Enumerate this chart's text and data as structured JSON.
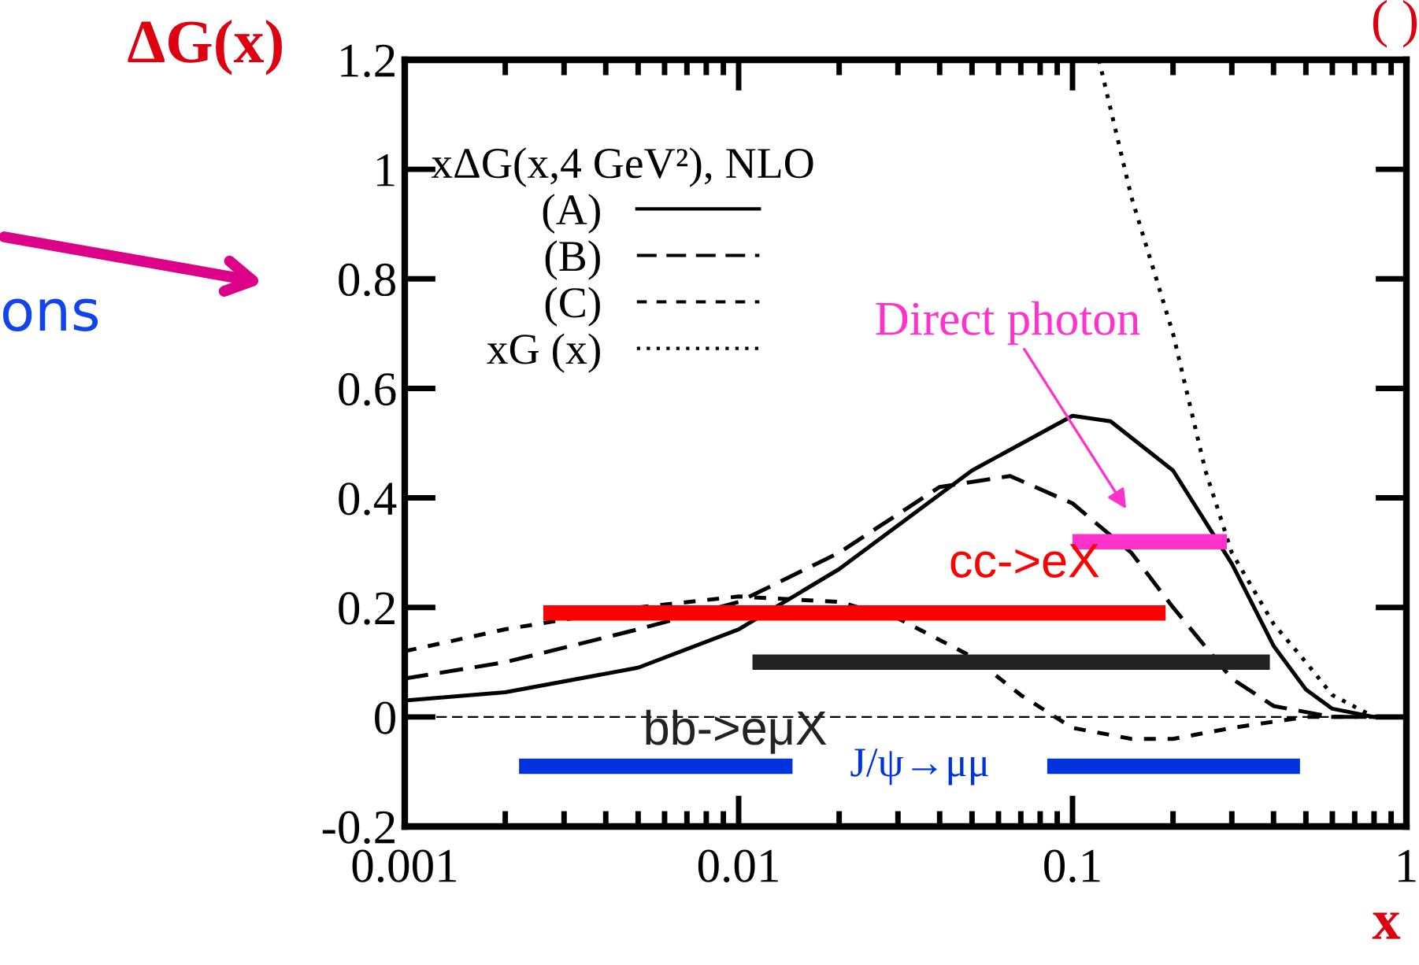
{
  "chart_data": {
    "type": "line",
    "xlabel": "x",
    "ylabel": "ΔG(x)",
    "legend_title": "xΔG(x,4 GeV²), NLO",
    "log": "x",
    "xlim": [
      0.001,
      1
    ],
    "xticks": [
      0.001,
      0.01,
      0.1,
      1
    ],
    "ylim": [
      -0.2,
      1.2
    ],
    "yticks": [
      -0.2,
      0,
      0.2,
      0.4,
      0.6,
      0.8,
      1,
      1.2
    ],
    "grid": false,
    "legend": "top left",
    "series": [
      {
        "name": "(A)",
        "color": "#000000",
        "line_style": "solid",
        "x": [
          0.001,
          0.002,
          0.005,
          0.01,
          0.02,
          0.05,
          0.1,
          0.13,
          0.2,
          0.3,
          0.4,
          0.5,
          0.6,
          0.8,
          1
        ],
        "values": [
          0.03,
          0.045,
          0.09,
          0.16,
          0.27,
          0.45,
          0.55,
          0.54,
          0.45,
          0.28,
          0.13,
          0.05,
          0.015,
          0,
          0
        ]
      },
      {
        "name": "(B)",
        "color": "#000000",
        "line_style": "dashed",
        "x": [
          0.001,
          0.002,
          0.005,
          0.01,
          0.02,
          0.04,
          0.065,
          0.1,
          0.15,
          0.2,
          0.3,
          0.4,
          0.6,
          1
        ],
        "values": [
          0.07,
          0.1,
          0.16,
          0.21,
          0.3,
          0.42,
          0.44,
          0.39,
          0.3,
          0.2,
          0.07,
          0.02,
          0,
          0
        ]
      },
      {
        "name": "(C)",
        "color": "#000000",
        "line_style": "shortdash",
        "x": [
          0.001,
          0.002,
          0.005,
          0.01,
          0.02,
          0.03,
          0.05,
          0.07,
          0.1,
          0.15,
          0.2,
          0.3,
          0.5,
          1
        ],
        "values": [
          0.12,
          0.16,
          0.2,
          0.22,
          0.21,
          0.18,
          0.11,
          0.04,
          -0.02,
          -0.04,
          -0.04,
          -0.02,
          0,
          0
        ]
      },
      {
        "name": "xG (x)",
        "color": "#000000",
        "line_style": "dotted",
        "x": [
          0.12,
          0.15,
          0.2,
          0.25,
          0.3,
          0.4,
          0.5,
          0.6,
          0.8,
          1
        ],
        "values": [
          1.2,
          0.95,
          0.7,
          0.45,
          0.3,
          0.17,
          0.1,
          0.04,
          0,
          0
        ]
      },
      {
        "name": "Direct photon",
        "color": "#ff33cc",
        "x": [
          0.1,
          0.29
        ],
        "values": [
          0.32,
          0.32
        ]
      },
      {
        "name": "cc->eX",
        "color": "#ff0000",
        "x": [
          0.0026,
          0.19
        ],
        "values": [
          0.19,
          0.19
        ]
      },
      {
        "name": "bb->eμX",
        "color": "#222222",
        "x": [
          0.011,
          0.39
        ],
        "values": [
          0.1,
          0.1
        ]
      },
      {
        "name": "J/ψ→μμ",
        "color": "#0033dd",
        "x": [
          0.0022,
          0.0145,
          0.05,
          0.084,
          0.48
        ],
        "values": [
          -0.09,
          -0.09,
          null,
          -0.09,
          -0.09
        ]
      }
    ],
    "ref_lines": [
      {
        "axis": "y",
        "value": 0,
        "color": "#000000",
        "line_style": "dashed"
      }
    ],
    "annotations": [
      "ons",
      "( )"
    ]
  }
}
